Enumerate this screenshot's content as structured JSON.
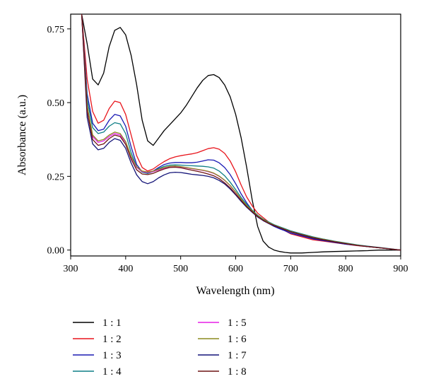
{
  "chart_data": {
    "type": "line",
    "title": "",
    "xlabel": "Wavelength (nm)",
    "ylabel": "Absorbance (a.u.)",
    "xlim": [
      300,
      900
    ],
    "ylim": [
      -0.02,
      0.8
    ],
    "xticks": [
      300,
      400,
      500,
      600,
      700,
      800,
      900
    ],
    "yticks": [
      0.0,
      0.25,
      0.5,
      0.75
    ],
    "xtick_labels": [
      "300",
      "400",
      "500",
      "600",
      "700",
      "800",
      "900"
    ],
    "ytick_labels": [
      "0.00",
      "0.25",
      "0.50",
      "0.75"
    ],
    "grid": false,
    "legend_position": "bottom",
    "x": [
      320,
      330,
      340,
      350,
      360,
      370,
      380,
      390,
      400,
      410,
      420,
      430,
      440,
      450,
      460,
      470,
      480,
      490,
      500,
      510,
      520,
      530,
      540,
      550,
      560,
      570,
      580,
      590,
      600,
      610,
      620,
      630,
      640,
      650,
      660,
      670,
      680,
      690,
      700,
      720,
      740,
      760,
      780,
      800,
      820,
      840,
      860,
      880,
      900
    ],
    "series": [
      {
        "name": "1 : 1",
        "color": "#000000",
        "values": [
          0.8,
          0.7,
          0.58,
          0.56,
          0.6,
          0.69,
          0.745,
          0.755,
          0.73,
          0.66,
          0.56,
          0.44,
          0.37,
          0.355,
          0.38,
          0.405,
          0.425,
          0.445,
          0.465,
          0.49,
          0.52,
          0.55,
          0.575,
          0.592,
          0.595,
          0.585,
          0.56,
          0.52,
          0.46,
          0.38,
          0.28,
          0.17,
          0.08,
          0.03,
          0.01,
          0.0,
          -0.005,
          -0.008,
          -0.01,
          -0.01,
          -0.008,
          -0.006,
          -0.005,
          -0.004,
          -0.003,
          -0.002,
          0.0,
          0.0,
          0.0
        ]
      },
      {
        "name": "1 : 2",
        "color": "#e8141b",
        "values": [
          0.8,
          0.58,
          0.47,
          0.43,
          0.44,
          0.48,
          0.505,
          0.5,
          0.46,
          0.39,
          0.32,
          0.28,
          0.268,
          0.275,
          0.288,
          0.3,
          0.31,
          0.316,
          0.32,
          0.323,
          0.326,
          0.33,
          0.337,
          0.344,
          0.347,
          0.342,
          0.328,
          0.302,
          0.265,
          0.22,
          0.18,
          0.15,
          0.125,
          0.11,
          0.095,
          0.085,
          0.075,
          0.065,
          0.055,
          0.045,
          0.035,
          0.03,
          0.025,
          0.02,
          0.015,
          0.012,
          0.008,
          0.004,
          0.0
        ]
      },
      {
        "name": "1 : 3",
        "color": "#1a1ab4",
        "values": [
          0.8,
          0.53,
          0.43,
          0.405,
          0.41,
          0.44,
          0.46,
          0.455,
          0.42,
          0.35,
          0.29,
          0.265,
          0.26,
          0.268,
          0.28,
          0.29,
          0.295,
          0.297,
          0.297,
          0.296,
          0.296,
          0.298,
          0.302,
          0.306,
          0.305,
          0.296,
          0.28,
          0.256,
          0.225,
          0.19,
          0.16,
          0.135,
          0.115,
          0.1,
          0.09,
          0.08,
          0.072,
          0.065,
          0.057,
          0.048,
          0.038,
          0.032,
          0.026,
          0.02,
          0.016,
          0.012,
          0.008,
          0.004,
          0.0
        ]
      },
      {
        "name": "1 : 4",
        "color": "#0f7f86",
        "values": [
          0.8,
          0.51,
          0.415,
          0.395,
          0.4,
          0.42,
          0.432,
          0.428,
          0.395,
          0.33,
          0.282,
          0.264,
          0.26,
          0.266,
          0.276,
          0.284,
          0.288,
          0.289,
          0.288,
          0.287,
          0.286,
          0.285,
          0.284,
          0.282,
          0.278,
          0.268,
          0.252,
          0.23,
          0.205,
          0.178,
          0.155,
          0.135,
          0.118,
          0.105,
          0.095,
          0.086,
          0.079,
          0.072,
          0.065,
          0.055,
          0.045,
          0.037,
          0.03,
          0.024,
          0.018,
          0.013,
          0.009,
          0.005,
          0.0
        ]
      },
      {
        "name": "1 : 5",
        "color": "#e61ee6",
        "values": [
          0.8,
          0.48,
          0.385,
          0.365,
          0.37,
          0.385,
          0.395,
          0.39,
          0.365,
          0.315,
          0.28,
          0.266,
          0.263,
          0.266,
          0.272,
          0.278,
          0.282,
          0.283,
          0.282,
          0.279,
          0.276,
          0.273,
          0.27,
          0.266,
          0.26,
          0.25,
          0.236,
          0.218,
          0.196,
          0.172,
          0.15,
          0.132,
          0.115,
          0.102,
          0.092,
          0.083,
          0.076,
          0.069,
          0.062,
          0.052,
          0.042,
          0.035,
          0.028,
          0.022,
          0.016,
          0.012,
          0.008,
          0.004,
          0.0
        ]
      },
      {
        "name": "1 : 6",
        "color": "#8c8a1e",
        "values": [
          0.8,
          0.49,
          0.39,
          0.37,
          0.375,
          0.39,
          0.4,
          0.395,
          0.368,
          0.318,
          0.282,
          0.268,
          0.265,
          0.268,
          0.274,
          0.28,
          0.284,
          0.285,
          0.283,
          0.28,
          0.277,
          0.274,
          0.271,
          0.267,
          0.261,
          0.251,
          0.237,
          0.219,
          0.197,
          0.173,
          0.151,
          0.133,
          0.116,
          0.103,
          0.093,
          0.084,
          0.077,
          0.07,
          0.063,
          0.053,
          0.043,
          0.036,
          0.029,
          0.023,
          0.017,
          0.012,
          0.008,
          0.004,
          0.0
        ]
      },
      {
        "name": "1 : 7",
        "color": "#141478",
        "values": [
          0.8,
          0.45,
          0.36,
          0.34,
          0.345,
          0.365,
          0.378,
          0.372,
          0.345,
          0.295,
          0.255,
          0.232,
          0.225,
          0.232,
          0.245,
          0.255,
          0.262,
          0.264,
          0.263,
          0.26,
          0.257,
          0.255,
          0.253,
          0.25,
          0.245,
          0.236,
          0.224,
          0.207,
          0.187,
          0.165,
          0.145,
          0.128,
          0.112,
          0.1,
          0.09,
          0.082,
          0.075,
          0.068,
          0.061,
          0.051,
          0.041,
          0.034,
          0.027,
          0.021,
          0.016,
          0.012,
          0.008,
          0.004,
          0.0
        ]
      },
      {
        "name": "1 : 8",
        "color": "#6e1414",
        "values": [
          0.8,
          0.47,
          0.375,
          0.355,
          0.36,
          0.378,
          0.39,
          0.385,
          0.358,
          0.308,
          0.272,
          0.258,
          0.256,
          0.26,
          0.268,
          0.275,
          0.28,
          0.281,
          0.279,
          0.275,
          0.271,
          0.267,
          0.263,
          0.258,
          0.252,
          0.242,
          0.228,
          0.211,
          0.19,
          0.168,
          0.147,
          0.13,
          0.114,
          0.101,
          0.091,
          0.083,
          0.076,
          0.069,
          0.062,
          0.052,
          0.042,
          0.035,
          0.028,
          0.022,
          0.016,
          0.012,
          0.008,
          0.004,
          0.0
        ]
      }
    ]
  }
}
